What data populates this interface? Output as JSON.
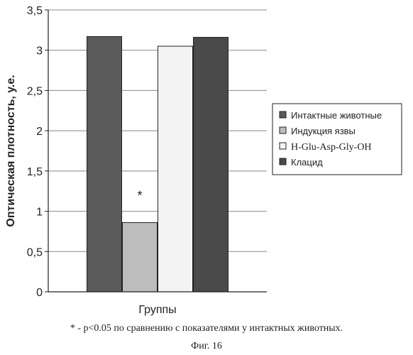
{
  "chart_data": {
    "type": "bar",
    "ylabel": "Оптическая плотность, у.е.",
    "xlabel": "Группы",
    "ylim": [
      0,
      3.5
    ],
    "yticks": [
      "0",
      "0,5",
      "1",
      "1,5",
      "2",
      "2,5",
      "3",
      "3,5"
    ],
    "grid": true,
    "legend_position": "right",
    "series": [
      {
        "name": "Интактные животные",
        "value": 3.17,
        "color": "#5a5a5a"
      },
      {
        "name": "Индукция язвы",
        "value": 0.86,
        "color": "#bdbdbd"
      },
      {
        "name": "H-Glu-Asp-Gly-OH",
        "value": 3.05,
        "color": "#f3f3f3"
      },
      {
        "name": "Клацид",
        "value": 3.16,
        "color": "#4a4a4a"
      }
    ],
    "annotation": {
      "text": "*",
      "series": "Индукция язвы"
    }
  },
  "footnote": "* - p<0.05 по сравнению с показателями у интактных животных.",
  "figure_label": "Фиг. 16"
}
